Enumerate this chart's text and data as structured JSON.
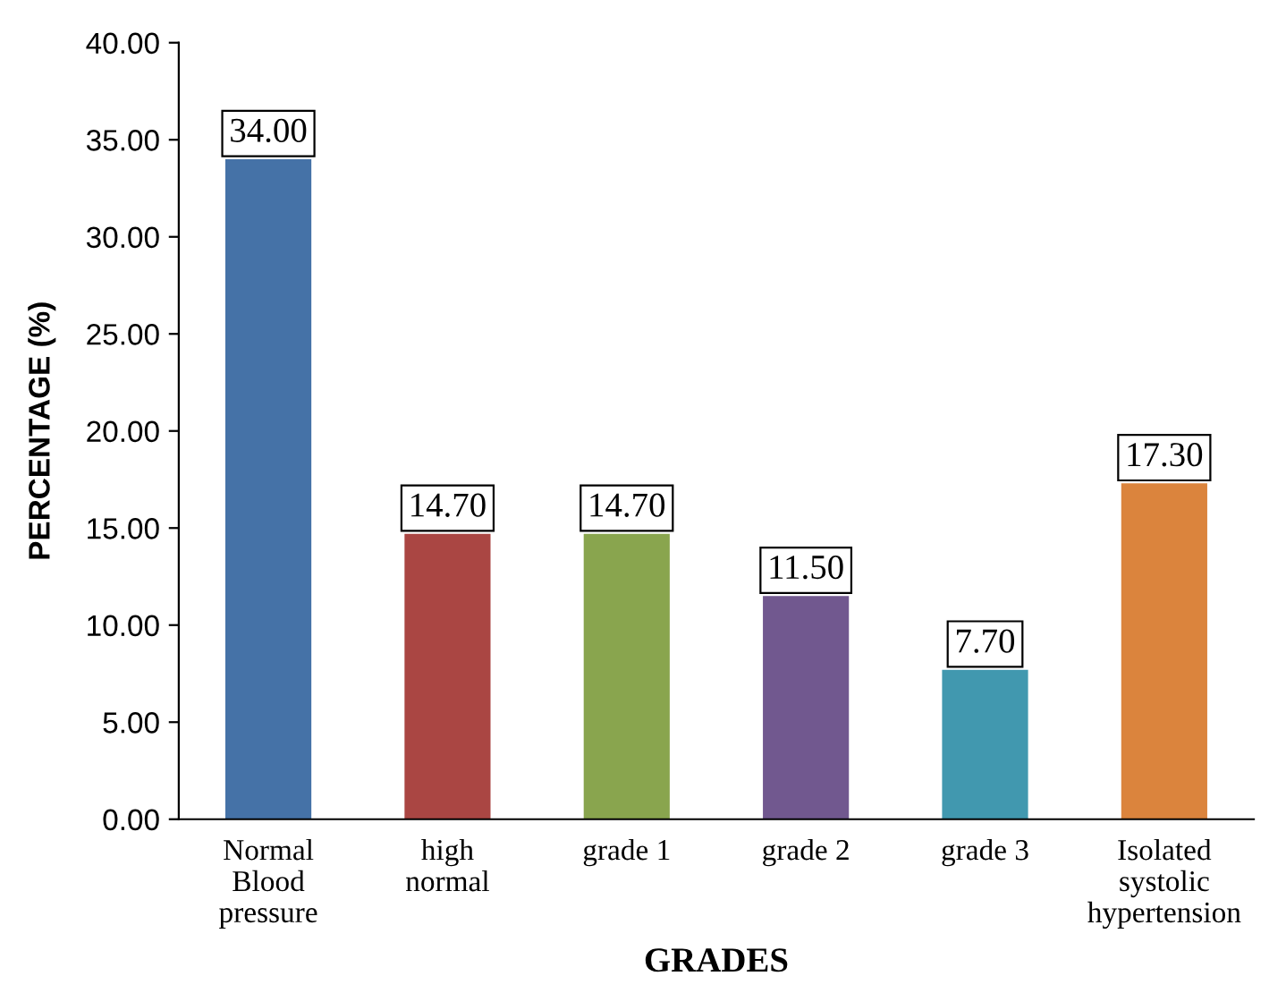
{
  "chart_data": {
    "type": "bar",
    "xlabel": "GRADES",
    "ylabel": "PERCENTAGE (%)",
    "categories": [
      "Normal\nBlood\npressure",
      "high\nnormal",
      "grade 1",
      "grade 2",
      "grade 3",
      "Isolated\nsystolic\nhypertension"
    ],
    "values": [
      34.0,
      14.7,
      14.7,
      11.5,
      7.7,
      17.3
    ],
    "value_labels": [
      "34.00",
      "14.70",
      "14.70",
      "11.50",
      "7.70",
      "17.30"
    ],
    "colors": [
      "#4572a7",
      "#aa4643",
      "#89a54e",
      "#71588f",
      "#4198af",
      "#db843d"
    ],
    "ylim": [
      0,
      40
    ],
    "yticks": [
      {
        "value": 0,
        "label": "0.00"
      },
      {
        "value": 5,
        "label": "5.00"
      },
      {
        "value": 10,
        "label": "10.00"
      },
      {
        "value": 15,
        "label": "15.00"
      },
      {
        "value": 20,
        "label": "20.00"
      },
      {
        "value": 25,
        "label": "25.00"
      },
      {
        "value": 30,
        "label": "30.00"
      },
      {
        "value": 35,
        "label": "35.00"
      },
      {
        "value": 40,
        "label": "40.00"
      }
    ],
    "grid": false,
    "legend": false
  }
}
